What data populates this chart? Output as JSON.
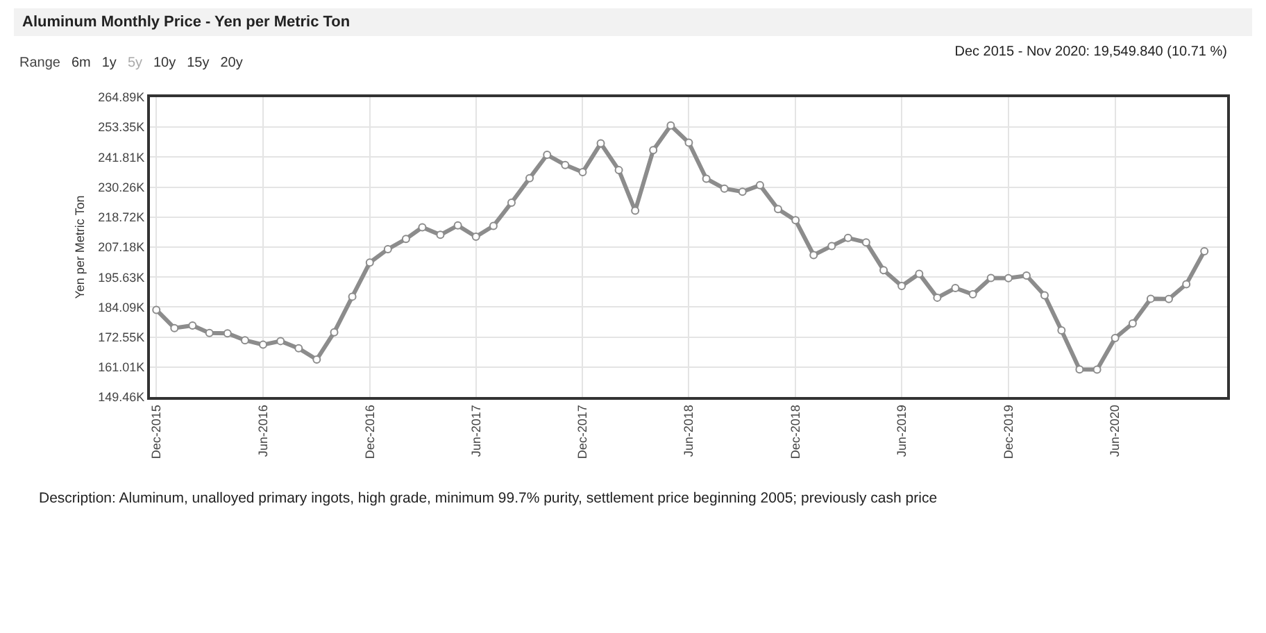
{
  "chart_data": {
    "type": "line",
    "title": "Aluminum Monthly Price - Yen per Metric Ton",
    "subtitle": "Dec 2015 - Nov 2020: 19,549.840 (10.71 %)",
    "ylabel": "Yen per Metric Ton",
    "annotations": [
      "Range",
      "6m",
      "1y",
      "5y",
      "10y",
      "15y",
      "20y",
      "Description: Aluminum, unalloyed primary ingots, high grade, minimum 99.7% purity, settlement price beginning 2005; previously cash price"
    ],
    "x": [
      "2015-12",
      "2016-01",
      "2016-02",
      "2016-03",
      "2016-04",
      "2016-05",
      "2016-06",
      "2016-07",
      "2016-08",
      "2016-09",
      "2016-10",
      "2016-11",
      "2016-12",
      "2017-01",
      "2017-02",
      "2017-03",
      "2017-04",
      "2017-05",
      "2017-06",
      "2017-07",
      "2017-08",
      "2017-09",
      "2017-10",
      "2017-11",
      "2017-12",
      "2018-01",
      "2018-02",
      "2018-03",
      "2018-04",
      "2018-05",
      "2018-06",
      "2018-07",
      "2018-08",
      "2018-09",
      "2018-10",
      "2018-11",
      "2018-12",
      "2019-01",
      "2019-02",
      "2019-03",
      "2019-04",
      "2019-05",
      "2019-06",
      "2019-07",
      "2019-08",
      "2019-09",
      "2019-10",
      "2019-11",
      "2019-12",
      "2020-01",
      "2020-02",
      "2020-03",
      "2020-04",
      "2020-05",
      "2020-06",
      "2020-07",
      "2020-08",
      "2020-09",
      "2020-10",
      "2020-11"
    ],
    "series": [
      {
        "color": "#8c8c8c",
        "values": [
          183.0,
          176.0,
          177.0,
          174.1,
          174.0,
          171.3,
          169.6,
          171.0,
          168.2,
          163.9,
          174.4,
          188.1,
          201.2,
          206.4,
          210.3,
          214.8,
          211.9,
          215.5,
          211.2,
          215.3,
          224.3,
          233.7,
          242.7,
          238.8,
          236.0,
          247.1,
          236.8,
          221.2,
          244.5,
          254.0,
          247.4,
          233.5,
          229.7,
          228.5,
          231.0,
          221.8,
          217.5,
          204.1,
          207.6,
          210.7,
          209.0,
          198.3,
          192.2,
          196.9,
          187.7,
          191.4,
          189.0,
          195.3,
          195.2,
          196.2,
          188.6,
          175.1,
          160.1,
          160.0,
          172.2,
          177.8,
          187.3,
          187.2,
          192.9,
          205.6
        ]
      }
    ],
    "xlim": [
      "2015-11-20",
      "2020-12-10"
    ],
    "xticks": [
      {
        "value": "2015-12",
        "label": "Dec-2015"
      },
      {
        "value": "2016-06",
        "label": "Jun-2016"
      },
      {
        "value": "2016-12",
        "label": "Dec-2016"
      },
      {
        "value": "2017-06",
        "label": "Jun-2017"
      },
      {
        "value": "2017-12",
        "label": "Dec-2017"
      },
      {
        "value": "2018-06",
        "label": "Jun-2018"
      },
      {
        "value": "2018-12",
        "label": "Dec-2018"
      },
      {
        "value": "2019-06",
        "label": "Jun-2019"
      },
      {
        "value": "2019-12",
        "label": "Dec-2019"
      },
      {
        "value": "2020-06",
        "label": "Jun-2020"
      }
    ],
    "ylim": [
      149.46,
      264.89
    ],
    "yticks": [
      {
        "value": 149.46,
        "label": "149.46K"
      },
      {
        "value": 161.01,
        "label": "161.01K"
      },
      {
        "value": 172.55,
        "label": "172.55K"
      },
      {
        "value": 184.09,
        "label": "184.09K"
      },
      {
        "value": 195.63,
        "label": "195.63K"
      },
      {
        "value": 207.18,
        "label": "207.18K"
      },
      {
        "value": 218.72,
        "label": "218.72K"
      },
      {
        "value": 230.26,
        "label": "230.26K"
      },
      {
        "value": 241.81,
        "label": "241.81K"
      },
      {
        "value": 253.35,
        "label": "253.35K"
      },
      {
        "value": 264.89,
        "label": "264.89K"
      }
    ],
    "grid": true,
    "marker": "circle"
  }
}
